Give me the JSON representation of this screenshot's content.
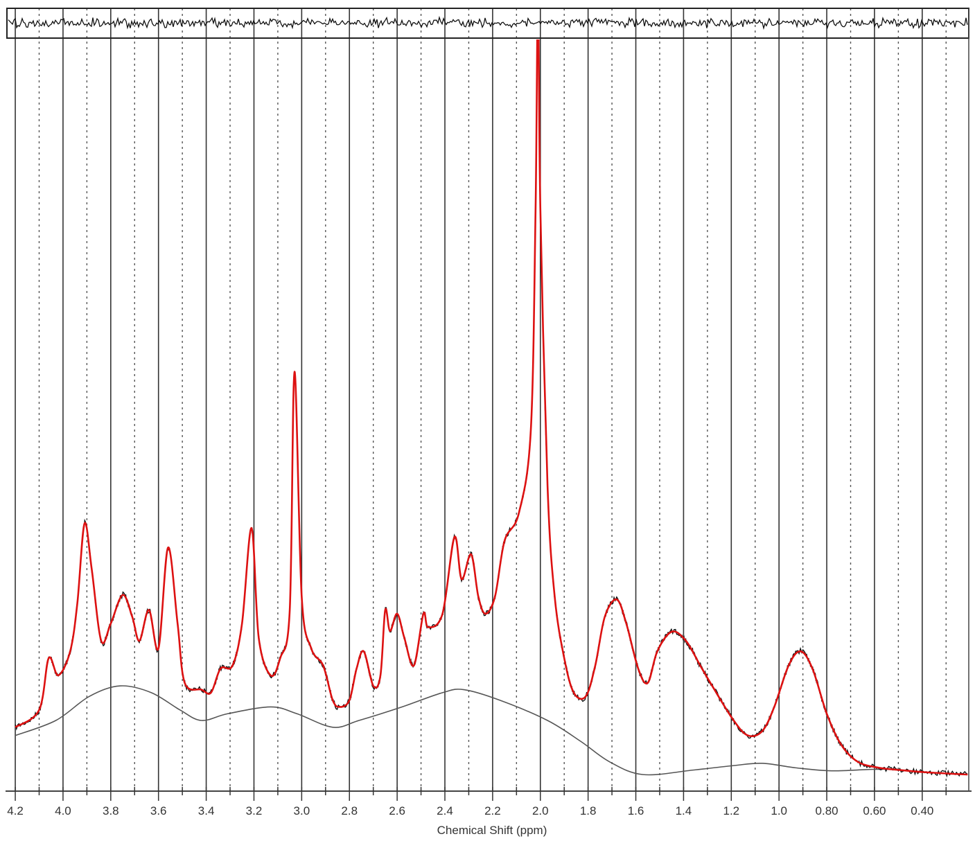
{
  "chart_data": {
    "type": "line",
    "title": "",
    "xlabel": "Chemical Shift (ppm)",
    "ylabel": "",
    "xlim": [
      4.235,
      0.205
    ],
    "x_reversed": true,
    "ylim": [
      0,
      1
    ],
    "y_units": "arbitrary intensity (fraction of plot height)",
    "grid": {
      "major_solid_every": 0.2,
      "minor_dotted_every": 0.1
    },
    "x_ticks": [
      "4.2",
      "4.0",
      "3.8",
      "3.6",
      "3.4",
      "3.2",
      "3.0",
      "2.8",
      "2.6",
      "2.4",
      "2.2",
      "2.0",
      "1.8",
      "1.6",
      "1.4",
      "1.2",
      "1.0",
      "0.80",
      "0.60",
      "0.40"
    ],
    "x_tick_values": [
      4.2,
      4.0,
      3.8,
      3.6,
      3.4,
      3.2,
      3.0,
      2.8,
      2.6,
      2.4,
      2.2,
      2.0,
      1.8,
      1.6,
      1.4,
      1.2,
      1.0,
      0.8,
      0.6,
      0.4
    ],
    "colors": {
      "fit": "#dd1111",
      "data": "#111111",
      "baseline": "#555555",
      "residual": "#111111"
    },
    "series": [
      {
        "role": "fit",
        "ppm": [
          4.2,
          4.1,
          4.06,
          4.02,
          3.97,
          3.94,
          3.91,
          3.88,
          3.84,
          3.8,
          3.75,
          3.71,
          3.68,
          3.64,
          3.6,
          3.56,
          3.52,
          3.49,
          3.42,
          3.38,
          3.34,
          3.29,
          3.25,
          3.21,
          3.18,
          3.13,
          3.09,
          3.05,
          3.03,
          3.0,
          2.96,
          2.91,
          2.87,
          2.84,
          2.8,
          2.77,
          2.74,
          2.7,
          2.67,
          2.65,
          2.63,
          2.6,
          2.57,
          2.53,
          2.49,
          2.47,
          2.41,
          2.36,
          2.33,
          2.29,
          2.26,
          2.23,
          2.19,
          2.15,
          2.09,
          2.04,
          2.02,
          2.01,
          2.0,
          1.97,
          1.94,
          1.9,
          1.86,
          1.81,
          1.77,
          1.73,
          1.68,
          1.64,
          1.59,
          1.55,
          1.51,
          1.45,
          1.39,
          1.33,
          1.28,
          1.19,
          1.13,
          1.07,
          1.02,
          0.96,
          0.91,
          0.86,
          0.8,
          0.74,
          0.67,
          0.58,
          0.49,
          0.38,
          0.21
        ],
        "intensity": [
          0.085,
          0.108,
          0.177,
          0.154,
          0.186,
          0.25,
          0.356,
          0.296,
          0.2,
          0.223,
          0.261,
          0.232,
          0.2,
          0.241,
          0.19,
          0.324,
          0.223,
          0.144,
          0.135,
          0.131,
          0.163,
          0.167,
          0.223,
          0.35,
          0.204,
          0.154,
          0.177,
          0.241,
          0.558,
          0.259,
          0.19,
          0.167,
          0.121,
          0.112,
          0.121,
          0.163,
          0.186,
          0.14,
          0.154,
          0.241,
          0.213,
          0.236,
          0.204,
          0.167,
          0.236,
          0.218,
          0.236,
          0.338,
          0.282,
          0.315,
          0.259,
          0.236,
          0.259,
          0.333,
          0.37,
          0.48,
          0.775,
          1.06,
          0.775,
          0.407,
          0.259,
          0.177,
          0.131,
          0.126,
          0.167,
          0.232,
          0.255,
          0.223,
          0.163,
          0.144,
          0.186,
          0.212,
          0.2,
          0.167,
          0.14,
          0.094,
          0.074,
          0.08,
          0.112,
          0.167,
          0.186,
          0.163,
          0.103,
          0.062,
          0.039,
          0.031,
          0.028,
          0.025,
          0.022
        ]
      },
      {
        "role": "baseline",
        "ppm": [
          4.2,
          4.03,
          3.89,
          3.76,
          3.63,
          3.51,
          3.42,
          3.31,
          3.13,
          3.02,
          2.87,
          2.76,
          2.58,
          2.41,
          2.32,
          2.17,
          1.97,
          1.83,
          1.71,
          1.57,
          1.36,
          1.19,
          1.07,
          0.93,
          0.78,
          0.61,
          0.49
        ],
        "intensity": [
          0.074,
          0.094,
          0.126,
          0.14,
          0.131,
          0.108,
          0.094,
          0.103,
          0.112,
          0.103,
          0.085,
          0.094,
          0.112,
          0.131,
          0.135,
          0.121,
          0.094,
          0.066,
          0.039,
          0.022,
          0.028,
          0.034,
          0.037,
          0.031,
          0.027,
          0.029,
          0.029
        ]
      }
    ],
    "residual_panel": true,
    "peak_clipped_at_top_ppm": 2.01
  }
}
